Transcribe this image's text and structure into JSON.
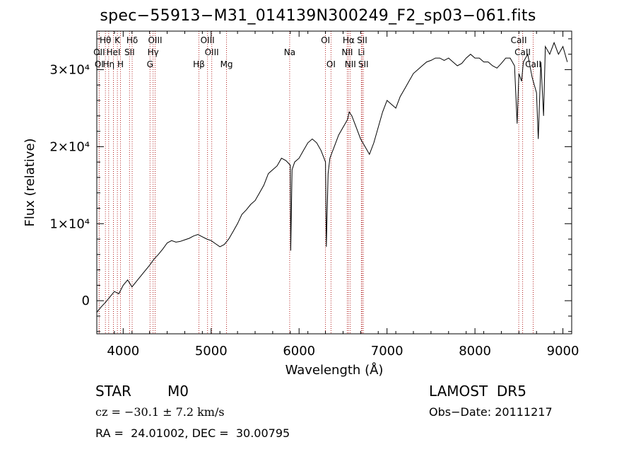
{
  "title": "spec−55913−M31_014139N300249_F2_sp03−061.fits",
  "colors": {
    "line_marker": "#b22222",
    "spectrum": "#000000"
  },
  "info": {
    "class": "STAR",
    "subclass": "M0",
    "survey": "LAMOST  DR5",
    "cz": "cz = −30.1 ± 7.2 km/s",
    "obs_date": "Obs−Date: 20111217",
    "radec": "RA =  24.01002, DEC =  30.00795"
  },
  "chart_data": {
    "type": "line",
    "xlabel": "Wavelength (Å)",
    "ylabel": "Flux (relative)",
    "xlim": [
      3700,
      9100
    ],
    "ylim": [
      -4300,
      35000
    ],
    "x_ticks": [
      {
        "v": 4000,
        "label": "4000"
      },
      {
        "v": 5000,
        "label": "5000"
      },
      {
        "v": 6000,
        "label": "6000"
      },
      {
        "v": 7000,
        "label": "7000"
      },
      {
        "v": 8000,
        "label": "8000"
      },
      {
        "v": 9000,
        "label": "9000"
      }
    ],
    "y_ticks": [
      {
        "v": 0,
        "label": "0"
      },
      {
        "v": 10000,
        "label": "1×10⁴"
      },
      {
        "v": 20000,
        "label": "2×10⁴"
      },
      {
        "v": 30000,
        "label": "3×10⁴"
      }
    ],
    "series": [
      {
        "x": [
          3700,
          3750,
          3800,
          3850,
          3900,
          3950,
          4000,
          4050,
          4100,
          4150,
          4200,
          4250,
          4300,
          4350,
          4400,
          4450,
          4500,
          4550,
          4600,
          4650,
          4700,
          4750,
          4800,
          4850,
          4900,
          4950,
          5000,
          5050,
          5100,
          5150,
          5200,
          5250,
          5300,
          5350,
          5400,
          5450,
          5500,
          5550,
          5600,
          5650,
          5700,
          5750,
          5800,
          5850,
          5900,
          5905,
          5920,
          5950,
          6000,
          6050,
          6100,
          6150,
          6200,
          6250,
          6300,
          6310,
          6330,
          6350,
          6400,
          6450,
          6500,
          6550,
          6570,
          6600,
          6650,
          6700,
          6750,
          6800,
          6850,
          6900,
          6950,
          7000,
          7050,
          7100,
          7150,
          7200,
          7250,
          7300,
          7350,
          7400,
          7450,
          7500,
          7550,
          7600,
          7650,
          7700,
          7750,
          7800,
          7850,
          7900,
          7950,
          8000,
          8050,
          8100,
          8150,
          8200,
          8250,
          8300,
          8350,
          8400,
          8450,
          8480,
          8500,
          8530,
          8550,
          8600,
          8650,
          8700,
          8720,
          8750,
          8780,
          8800,
          8850,
          8900,
          8950,
          9000,
          9050
        ],
        "y": [
          -1500,
          -800,
          -200,
          500,
          1200,
          900,
          2000,
          2700,
          1800,
          2500,
          3200,
          3900,
          4600,
          5400,
          6000,
          6700,
          7500,
          7800,
          7600,
          7700,
          7900,
          8100,
          8400,
          8600,
          8300,
          8000,
          7800,
          7400,
          7000,
          7300,
          8000,
          9000,
          10000,
          11200,
          11800,
          12500,
          13000,
          14000,
          15000,
          16500,
          17000,
          17500,
          18500,
          18200,
          17600,
          6500,
          17000,
          18000,
          18500,
          19500,
          20500,
          21000,
          20500,
          19500,
          18000,
          7000,
          16500,
          18500,
          20000,
          21500,
          22500,
          23500,
          24500,
          24000,
          22500,
          21000,
          20000,
          19000,
          20500,
          22500,
          24500,
          26000,
          25500,
          25000,
          26500,
          27500,
          28500,
          29500,
          30000,
          30500,
          31000,
          31200,
          31500,
          31500,
          31200,
          31500,
          31000,
          30500,
          30800,
          31500,
          32000,
          31500,
          31500,
          31000,
          31000,
          30500,
          30200,
          30800,
          31500,
          31500,
          30500,
          23000,
          29500,
          28500,
          31000,
          32000,
          29000,
          27000,
          21000,
          31000,
          24000,
          33000,
          32000,
          33500,
          32000,
          33000,
          31000
        ]
      }
    ],
    "line_ids": [
      {
        "name": "Hθ",
        "x": 3798,
        "row": 0
      },
      {
        "name": "K",
        "x": 3934,
        "row": 0
      },
      {
        "name": "Hδ",
        "x": 4102,
        "row": 0
      },
      {
        "name": "OIII",
        "x": 4363,
        "row": 0
      },
      {
        "name": "OIII",
        "x": 4959,
        "row": 0
      },
      {
        "name": "OI",
        "x": 6300,
        "row": 0
      },
      {
        "name": "Hα",
        "x": 6563,
        "row": 0
      },
      {
        "name": "SII",
        "x": 6717,
        "row": 0
      },
      {
        "name": "CaII",
        "x": 8498,
        "row": 0
      },
      {
        "name": "OII",
        "x": 3727,
        "row": 1
      },
      {
        "name": "HeI",
        "x": 3889,
        "row": 1
      },
      {
        "name": "SII",
        "x": 4072,
        "row": 1
      },
      {
        "name": "Hγ",
        "x": 4340,
        "row": 1
      },
      {
        "name": "OIII",
        "x": 5007,
        "row": 1
      },
      {
        "name": "Na",
        "x": 5893,
        "row": 1
      },
      {
        "name": "NII",
        "x": 6548,
        "row": 1
      },
      {
        "name": "Li",
        "x": 6708,
        "row": 1
      },
      {
        "name": "CaII",
        "x": 8542,
        "row": 1
      },
      {
        "name": "OI",
        "x": 3727,
        "row": 2
      },
      {
        "name": "Hη",
        "x": 3835,
        "row": 2
      },
      {
        "name": "H",
        "x": 3969,
        "row": 2
      },
      {
        "name": "G",
        "x": 4305,
        "row": 2
      },
      {
        "name": "Hβ",
        "x": 4861,
        "row": 2
      },
      {
        "name": "Mg",
        "x": 5175,
        "row": 2
      },
      {
        "name": "OI",
        "x": 6363,
        "row": 2
      },
      {
        "name": "NII",
        "x": 6583,
        "row": 2
      },
      {
        "name": "SII",
        "x": 6731,
        "row": 2
      },
      {
        "name": "CaII",
        "x": 8662,
        "row": 2
      }
    ]
  }
}
